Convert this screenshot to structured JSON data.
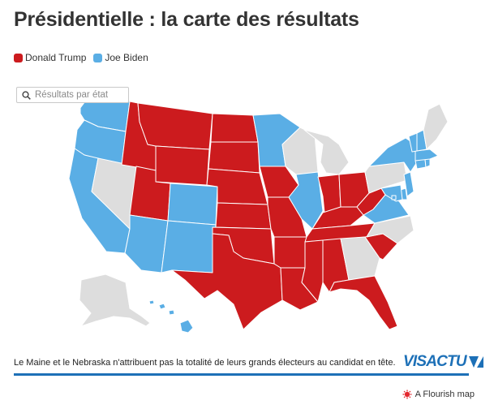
{
  "title": "Présidentielle : la carte des résultats",
  "legend": [
    {
      "label": "Donald Trump",
      "color": "#cc1b1e"
    },
    {
      "label": "Joe Biden",
      "color": "#5aaee5"
    }
  ],
  "colors": {
    "trump": "#cc1b1e",
    "biden": "#5aaee5",
    "undecided": "#dddddd",
    "border": "#ffffff"
  },
  "search": {
    "placeholder": "Résultats par état"
  },
  "results": {
    "WA": "biden",
    "OR": "biden",
    "CA": "biden",
    "NV": "undecided",
    "ID": "trump",
    "MT": "trump",
    "WY": "trump",
    "UT": "trump",
    "AZ": "biden",
    "CO": "biden",
    "NM": "biden",
    "ND": "trump",
    "SD": "trump",
    "NE": "trump",
    "KS": "trump",
    "OK": "trump",
    "TX": "trump",
    "MN": "biden",
    "IA": "trump",
    "MO": "trump",
    "AR": "trump",
    "LA": "trump",
    "WI": "undecided",
    "IL": "biden",
    "MS": "trump",
    "MI": "undecided",
    "IN": "trump",
    "KY": "trump",
    "TN": "trump",
    "AL": "trump",
    "OH": "trump",
    "GA": "undecided",
    "FL": "trump",
    "SC": "trump",
    "NC": "undecided",
    "WV": "trump",
    "VA": "biden",
    "PA": "undecided",
    "NY": "biden",
    "ME": "undecided",
    "VT": "biden",
    "NH": "biden",
    "MA": "biden",
    "CT": "biden",
    "RI": "biden",
    "NJ": "biden",
    "DE": "biden",
    "MD": "biden",
    "DC": "biden",
    "AK": "undecided",
    "HI": "biden"
  },
  "footer": {
    "note": "Le Maine et le Nebraska n'attribuent pas la totalité de leurs grands électeurs au candidat en tête.",
    "logo_vis": "VIS",
    "logo_actu": "ACTU",
    "attribution": "A Flourish map"
  }
}
